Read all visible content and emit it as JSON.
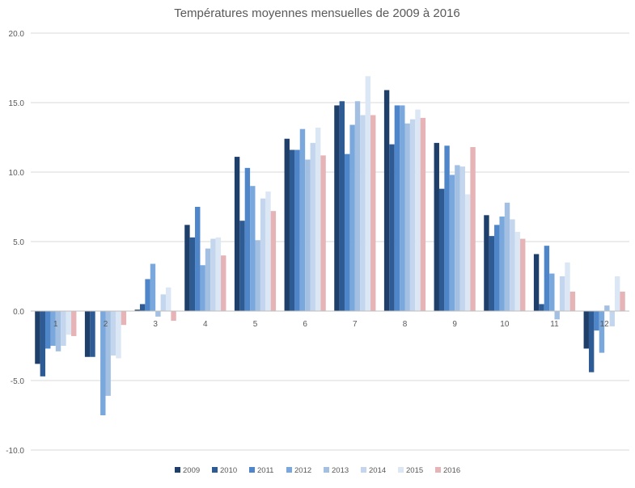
{
  "chart_data": {
    "type": "bar",
    "title": "Températures moyennes mensuelles de 2009 à 2016",
    "xlabel": "",
    "ylabel": "",
    "ylim": [
      -10,
      20
    ],
    "yticks": [
      "-10.0",
      "-5.0",
      "0.0",
      "5.0",
      "10.0",
      "15.0",
      "20.0"
    ],
    "grid": true,
    "legend_position": "bottom",
    "categories": [
      "1",
      "2",
      "3",
      "4",
      "5",
      "6",
      "7",
      "8",
      "9",
      "10",
      "11",
      "12"
    ],
    "series": [
      {
        "name": "2009",
        "color": "#1f3f6b",
        "values": [
          -3.8,
          -3.3,
          0.1,
          6.2,
          11.1,
          12.4,
          14.8,
          15.9,
          12.1,
          6.9,
          4.1,
          -2.7
        ]
      },
      {
        "name": "2010",
        "color": "#2e5b94",
        "values": [
          -4.7,
          -3.3,
          0.5,
          5.3,
          6.5,
          11.6,
          15.1,
          12.0,
          8.8,
          5.4,
          0.5,
          -4.4
        ]
      },
      {
        "name": "2011",
        "color": "#4f86c9",
        "values": [
          -2.7,
          0.0,
          2.3,
          7.5,
          10.3,
          11.6,
          11.3,
          14.8,
          11.9,
          6.2,
          4.7,
          -1.4
        ]
      },
      {
        "name": "2012",
        "color": "#7aa8dc",
        "values": [
          -2.5,
          -7.5,
          3.4,
          3.3,
          9.0,
          13.1,
          13.4,
          14.8,
          9.8,
          6.8,
          2.7,
          -3.0
        ]
      },
      {
        "name": "2013",
        "color": "#a3c0e3",
        "values": [
          -2.9,
          -6.1,
          -0.4,
          4.5,
          5.1,
          10.9,
          15.1,
          13.5,
          10.5,
          7.8,
          -0.6,
          0.4
        ]
      },
      {
        "name": "2014",
        "color": "#c3d6ee",
        "values": [
          -2.5,
          -3.2,
          1.2,
          5.2,
          8.1,
          12.1,
          14.1,
          13.8,
          10.4,
          6.6,
          2.5,
          -1.1
        ]
      },
      {
        "name": "2015",
        "color": "#dce7f5",
        "values": [
          -1.7,
          -3.4,
          1.7,
          5.3,
          8.6,
          13.2,
          16.9,
          14.5,
          8.4,
          5.7,
          3.5,
          2.5
        ]
      },
      {
        "name": "2016",
        "color": "#e6b4b6",
        "values": [
          -1.8,
          -1.0,
          -0.7,
          4.0,
          7.2,
          11.2,
          14.1,
          13.9,
          11.8,
          5.2,
          1.4,
          1.4
        ]
      }
    ]
  }
}
